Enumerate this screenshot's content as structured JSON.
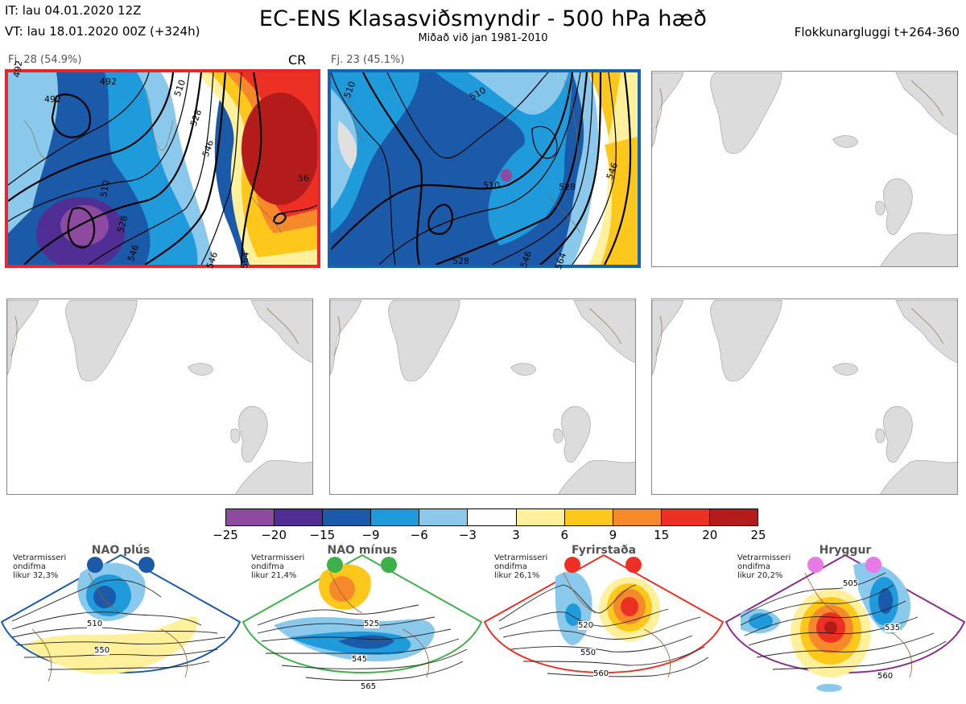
{
  "header": {
    "it_line": "IT: lau 04.01.2020 12Z",
    "vt_line": "VT: lau 18.01.2020 00Z  (+324h)",
    "title": "EC-ENS Klasasviðsmyndir - 500 hPa hæð",
    "subtitle": "Miðað við jan 1981-2010",
    "window": "Flokkunargluggi t+264-360"
  },
  "panels": [
    {
      "caption": "Fj. 28 (54.9%)",
      "tag": "CR",
      "border_color": "#e8262c",
      "contour_labels": [
        "492",
        "492",
        "510",
        "528",
        "546",
        "510",
        "528",
        "546",
        "564",
        "56",
        "546"
      ]
    },
    {
      "caption": "Fj. 23 (45.1%)",
      "tag": "",
      "border_color": "#1563ac",
      "contour_labels": [
        "510",
        "510",
        "510",
        "528",
        "528",
        "546",
        "564",
        "546"
      ]
    }
  ],
  "colorbar": {
    "labels": [
      "−25",
      "−20",
      "−15",
      "−9",
      "−6",
      "−3",
      "3",
      "6",
      "9",
      "15",
      "20",
      "25"
    ],
    "colors": [
      "#8e4aa0",
      "#512e94",
      "#1a5aa8",
      "#1f9bdc",
      "#8bc9ec",
      "#ffffff",
      "#fff19c",
      "#fec71c",
      "#f68a2a",
      "#ed3024",
      "#b41c1c"
    ]
  },
  "regimes": [
    {
      "title": "NAO plús",
      "note": "Vetrarmisseri\nondifma\nlikur 32,3%",
      "color": "#1a5aa8",
      "dot_color": "#1a5aa8",
      "labels": [
        "510",
        "550"
      ]
    },
    {
      "title": "NAO mínus",
      "note": "Vetrarmisseri\nondifma\nlikur 21,4%",
      "color": "#3db04a",
      "dot_color": "#3db04a",
      "labels": [
        "525",
        "545",
        "565"
      ]
    },
    {
      "title": "Fyrirstaða",
      "note": "Vetrarmisseri\nondifma\nlikur 26,1%",
      "color": "#ed3024",
      "dot_color": "#ed3024",
      "labels": [
        "520",
        "550",
        "560"
      ]
    },
    {
      "title": "Hryggur",
      "note": "Vetrarmisseri\nondifma\nlikur 20,2%",
      "color": "#8a2a90",
      "dot_color": "#e87ae8",
      "labels": [
        "505",
        "535",
        "560"
      ]
    }
  ]
}
